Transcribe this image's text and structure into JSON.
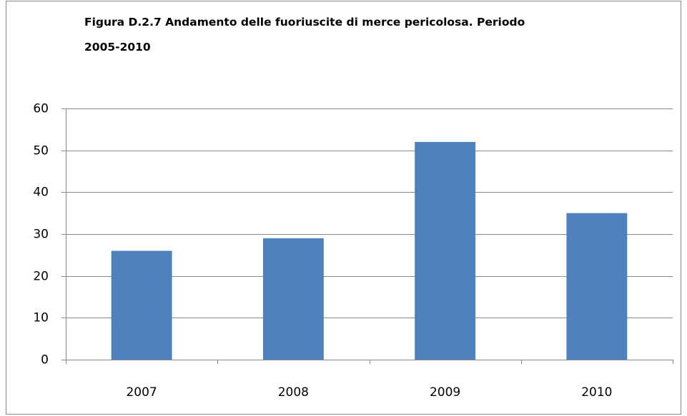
{
  "chart_data": {
    "type": "bar",
    "title": [
      "Figura D.2.7 Andamento delle fuoriuscite di merce pericolosa. Periodo",
      "2005-2010"
    ],
    "categories": [
      "2007",
      "2008",
      "2009",
      "2010"
    ],
    "values": [
      26,
      29,
      52,
      35
    ],
    "color": "#4f81bd",
    "ylim": [
      0,
      60
    ],
    "yticks": [
      0,
      10,
      20,
      30,
      40,
      50,
      60
    ],
    "grid": true
  }
}
